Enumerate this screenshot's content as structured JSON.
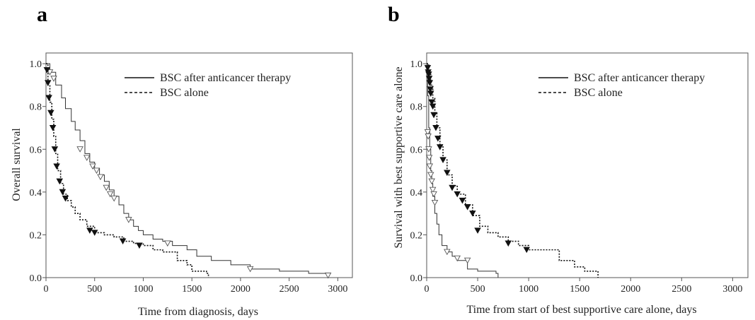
{
  "panels": [
    {
      "letter": "a"
    },
    {
      "letter": "b"
    }
  ],
  "chart_data": [
    {
      "type": "line",
      "panel": "a",
      "title": "",
      "xlabel": "Time from diagnosis, days",
      "ylabel": "Overall survival",
      "xlim": [
        0,
        3150
      ],
      "ylim": [
        0,
        1.05
      ],
      "xticks": [
        0,
        500,
        1000,
        1500,
        2000,
        2500,
        3000
      ],
      "yticks": [
        0.0,
        0.2,
        0.4,
        0.6,
        0.8,
        1.0
      ],
      "xtick_labels": [
        "0",
        "500",
        "1000",
        "1500",
        "2000",
        "2500",
        "3000"
      ],
      "ytick_labels": [
        "0.0",
        "0.2",
        "0.4",
        "0.6",
        "0.8",
        "1.0"
      ],
      "grid": false,
      "legend": "top-right",
      "series": [
        {
          "name": "BSC after anticancer therapy",
          "style": "solid",
          "color": "#333333",
          "censor_marker": "open-triangle-down",
          "x": [
            0,
            40,
            100,
            160,
            200,
            260,
            300,
            350,
            400,
            450,
            500,
            550,
            600,
            650,
            700,
            750,
            800,
            850,
            900,
            950,
            1000,
            1100,
            1200,
            1300,
            1450,
            1550,
            1700,
            1900,
            2100,
            2400,
            2700,
            2900
          ],
          "y": [
            1.0,
            0.96,
            0.9,
            0.84,
            0.79,
            0.73,
            0.69,
            0.64,
            0.58,
            0.54,
            0.51,
            0.48,
            0.45,
            0.41,
            0.38,
            0.34,
            0.3,
            0.27,
            0.24,
            0.22,
            0.2,
            0.18,
            0.17,
            0.15,
            0.13,
            0.1,
            0.08,
            0.06,
            0.04,
            0.03,
            0.02,
            0.01
          ],
          "censored": [
            [
              40,
              0.96
            ],
            [
              80,
              0.93
            ],
            [
              350,
              0.6
            ],
            [
              420,
              0.56
            ],
            [
              480,
              0.52
            ],
            [
              520,
              0.5
            ],
            [
              560,
              0.47
            ],
            [
              620,
              0.42
            ],
            [
              660,
              0.39
            ],
            [
              700,
              0.37
            ],
            [
              850,
              0.27
            ],
            [
              1250,
              0.16
            ],
            [
              2100,
              0.04
            ],
            [
              2900,
              0.01
            ]
          ]
        },
        {
          "name": "BSC alone",
          "style": "dashed",
          "color": "#111111",
          "censor_marker": "filled-triangle-down",
          "x": [
            0,
            20,
            40,
            60,
            80,
            100,
            120,
            150,
            180,
            220,
            260,
            300,
            350,
            420,
            500,
            600,
            700,
            800,
            900,
            1000,
            1100,
            1200,
            1350,
            1450,
            1500,
            1650,
            1670
          ],
          "y": [
            1.0,
            0.9,
            0.82,
            0.74,
            0.66,
            0.58,
            0.5,
            0.44,
            0.39,
            0.36,
            0.33,
            0.3,
            0.27,
            0.24,
            0.21,
            0.2,
            0.19,
            0.17,
            0.16,
            0.15,
            0.13,
            0.12,
            0.08,
            0.06,
            0.03,
            0.02,
            0.0
          ],
          "censored": [
            [
              10,
              0.97
            ],
            [
              20,
              0.91
            ],
            [
              30,
              0.84
            ],
            [
              50,
              0.77
            ],
            [
              70,
              0.7
            ],
            [
              90,
              0.6
            ],
            [
              110,
              0.52
            ],
            [
              140,
              0.45
            ],
            [
              170,
              0.4
            ],
            [
              200,
              0.37
            ],
            [
              450,
              0.22
            ],
            [
              500,
              0.21
            ],
            [
              790,
              0.17
            ],
            [
              960,
              0.15
            ]
          ]
        }
      ]
    },
    {
      "type": "line",
      "panel": "b",
      "title": "",
      "xlabel": "Time from start of best supportive care alone, days",
      "ylabel": "Survival with  best supportive care alone",
      "xlim": [
        0,
        3150
      ],
      "ylim": [
        0,
        1.05
      ],
      "xticks": [
        0,
        500,
        1000,
        1500,
        2000,
        2500,
        3000
      ],
      "yticks": [
        0.0,
        0.2,
        0.4,
        0.6,
        0.8,
        1.0
      ],
      "xtick_labels": [
        "0",
        "500",
        "1000",
        "1500",
        "2000",
        "2500",
        "3000"
      ],
      "ytick_labels": [
        "0.0",
        "0.2",
        "0.4",
        "0.6",
        "0.8",
        "1.0"
      ],
      "grid": false,
      "legend": "top-right",
      "series": [
        {
          "name": "BSC after anticancer therapy",
          "style": "solid",
          "color": "#333333",
          "censor_marker": "open-triangle-down",
          "x": [
            0,
            10,
            20,
            30,
            40,
            50,
            60,
            80,
            100,
            120,
            150,
            200,
            250,
            300,
            400,
            500,
            600,
            680,
            700
          ],
          "y": [
            1.0,
            0.85,
            0.7,
            0.6,
            0.5,
            0.44,
            0.38,
            0.3,
            0.25,
            0.2,
            0.15,
            0.12,
            0.1,
            0.08,
            0.04,
            0.03,
            0.03,
            0.02,
            0.0
          ],
          "censored": [
            [
              10,
              0.68
            ],
            [
              15,
              0.66
            ],
            [
              20,
              0.6
            ],
            [
              25,
              0.56
            ],
            [
              30,
              0.52
            ],
            [
              40,
              0.48
            ],
            [
              50,
              0.45
            ],
            [
              60,
              0.41
            ],
            [
              70,
              0.39
            ],
            [
              80,
              0.35
            ],
            [
              200,
              0.12
            ],
            [
              300,
              0.09
            ],
            [
              400,
              0.08
            ]
          ]
        },
        {
          "name": "BSC alone",
          "style": "dashed",
          "color": "#111111",
          "censor_marker": "filled-triangle-down",
          "x": [
            0,
            20,
            40,
            60,
            80,
            100,
            130,
            160,
            200,
            250,
            300,
            380,
            450,
            520,
            600,
            700,
            800,
            900,
            1000,
            1150,
            1300,
            1450,
            1550,
            1680
          ],
          "y": [
            1.0,
            0.95,
            0.9,
            0.84,
            0.77,
            0.7,
            0.62,
            0.55,
            0.48,
            0.43,
            0.39,
            0.34,
            0.29,
            0.24,
            0.21,
            0.19,
            0.17,
            0.15,
            0.13,
            0.13,
            0.08,
            0.05,
            0.03,
            0.0
          ],
          "censored": [
            [
              10,
              0.98
            ],
            [
              15,
              0.96
            ],
            [
              20,
              0.95
            ],
            [
              25,
              0.93
            ],
            [
              30,
              0.91
            ],
            [
              35,
              0.88
            ],
            [
              40,
              0.86
            ],
            [
              50,
              0.82
            ],
            [
              60,
              0.8
            ],
            [
              70,
              0.76
            ],
            [
              90,
              0.7
            ],
            [
              110,
              0.65
            ],
            [
              130,
              0.61
            ],
            [
              160,
              0.55
            ],
            [
              200,
              0.49
            ],
            [
              250,
              0.42
            ],
            [
              300,
              0.39
            ],
            [
              350,
              0.36
            ],
            [
              400,
              0.33
            ],
            [
              450,
              0.3
            ],
            [
              500,
              0.22
            ],
            [
              800,
              0.16
            ],
            [
              980,
              0.13
            ]
          ]
        }
      ]
    }
  ]
}
